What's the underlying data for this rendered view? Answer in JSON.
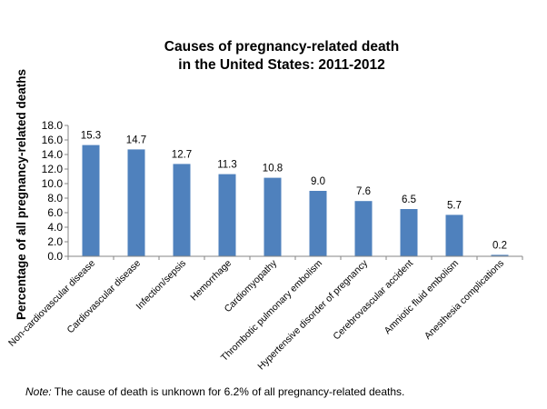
{
  "chart_data": {
    "type": "bar",
    "title_lines": [
      "Causes of pregnancy-related death",
      "in the United States: 2011-2012"
    ],
    "xlabel": "",
    "ylabel": "Percentage of all pregnancy-related deaths",
    "categories": [
      "Non-cardiovascular disease",
      "Cardiovascular disease",
      "Infection/sepsis",
      "Hemorrhage",
      "Cardiomyopathy",
      "Thrombotic pulmonary embolism",
      "Hypertensive disorder of pregnancy",
      "Cerebrovascular accident",
      "Amniotic fluid embolism",
      "Anesthesia complications"
    ],
    "values": [
      15.3,
      14.7,
      12.7,
      11.3,
      10.8,
      9.0,
      7.6,
      6.5,
      5.7,
      0.2
    ],
    "value_labels": [
      "15.3",
      "14.7",
      "12.7",
      "11.3",
      "10.8",
      "9.0",
      "7.6",
      "6.5",
      "5.7",
      "0.2"
    ],
    "ylim": [
      0,
      18
    ],
    "y_ticks": [
      "0.0",
      "2.0",
      "4.0",
      "6.0",
      "8.0",
      "10.0",
      "12.0",
      "14.0",
      "16.0",
      "18.0"
    ],
    "grid": false,
    "legend": "none",
    "bar_color": "#4F81BD",
    "note": {
      "label": "Note:",
      "text": " The cause of death is unknown for 6.2% of all pregnancy-related deaths."
    }
  }
}
